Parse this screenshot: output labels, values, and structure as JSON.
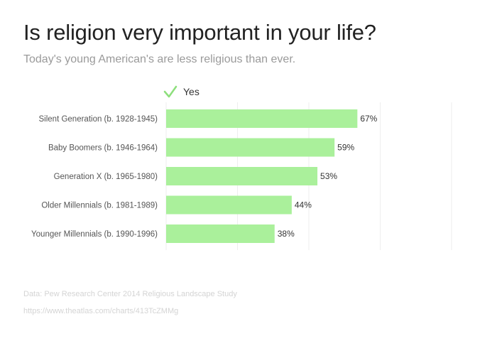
{
  "header": {
    "title": "Is religion very important in your life?",
    "subtitle": "Today's young American's are less religious than ever."
  },
  "footer": {
    "source": "Data: Pew Research Center 2014 Religious Landscape Study",
    "url": "https://www.theatlas.com/charts/413TcZMMg"
  },
  "chart_data": {
    "type": "bar",
    "orientation": "horizontal",
    "categories": [
      "Silent Generation (b. 1928-1945)",
      "Baby Boomers (b. 1946-1964)",
      "Generation X (b. 1965-1980)",
      "Older Millennials (b. 1981-1989)",
      "Younger Millennials (b. 1990-1996)"
    ],
    "series": [
      {
        "name": "Yes",
        "values": [
          67,
          59,
          53,
          44,
          38
        ],
        "labels": [
          "67%",
          "59%",
          "53%",
          "44%",
          "38%"
        ],
        "color": "#aaf09b"
      }
    ],
    "xlim": [
      0,
      100
    ],
    "grid": true,
    "legend": "top",
    "legend_marker_color": "#8ddf7c",
    "gridline_color": "#eeeeee"
  }
}
